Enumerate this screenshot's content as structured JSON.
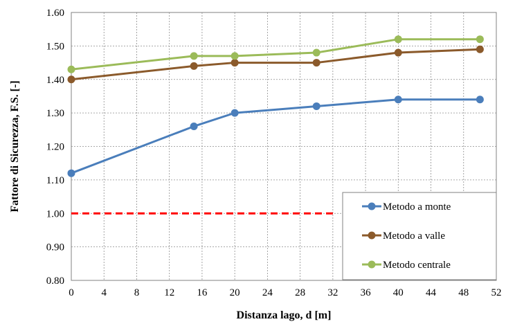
{
  "chart_data": {
    "type": "line",
    "xlabel": "Distanza lago, d [m]",
    "ylabel": "Fattore di Sicurezza, F.S. [-]",
    "xlim": [
      0,
      52
    ],
    "ylim": [
      0.8,
      1.6
    ],
    "x_ticks": [
      "0",
      "4",
      "8",
      "12",
      "16",
      "20",
      "24",
      "28",
      "32",
      "36",
      "40",
      "44",
      "48",
      "52"
    ],
    "y_ticks": [
      "0.80",
      "0.90",
      "1.00",
      "1.10",
      "1.20",
      "1.30",
      "1.40",
      "1.50",
      "1.60"
    ],
    "grid": true,
    "legend_position": "bottom-right",
    "series": [
      {
        "name": "Metodo a monte",
        "color": "#4a7ebb",
        "x": [
          0,
          15,
          20,
          30,
          40,
          50
        ],
        "y": [
          1.12,
          1.26,
          1.3,
          1.32,
          1.34,
          1.34
        ]
      },
      {
        "name": "Metodo a valle",
        "color": "#8b5a2b",
        "x": [
          0,
          15,
          20,
          30,
          40,
          50
        ],
        "y": [
          1.4,
          1.44,
          1.45,
          1.45,
          1.48,
          1.49
        ]
      },
      {
        "name": "Metodo centrale",
        "color": "#9bbb59",
        "x": [
          0,
          15,
          20,
          30,
          40,
          50
        ],
        "y": [
          1.43,
          1.47,
          1.47,
          1.48,
          1.52,
          1.52
        ]
      }
    ],
    "reference_line": {
      "y": 1.0,
      "x": [
        0,
        32
      ],
      "color": "#ff0000",
      "style": "dashed"
    }
  }
}
